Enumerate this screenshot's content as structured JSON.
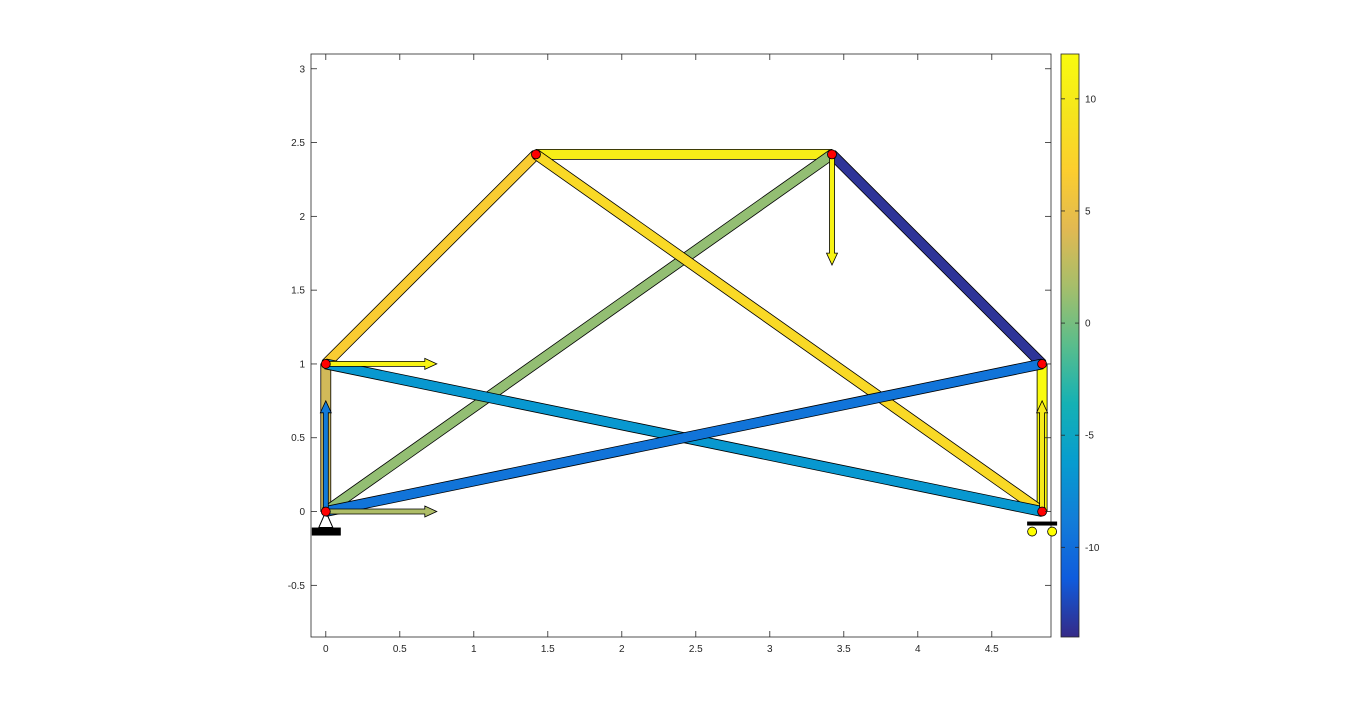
{
  "chart_data": {
    "type": "scatter",
    "title": "",
    "xlabel": "",
    "ylabel": "",
    "xlim": [
      -0.1,
      4.9
    ],
    "ylim": [
      -0.85,
      3.1
    ],
    "grid": false,
    "x_ticks": [
      {
        "value": 0,
        "label": "0"
      },
      {
        "value": 0.5,
        "label": "0.5"
      },
      {
        "value": 1,
        "label": "1"
      },
      {
        "value": 1.5,
        "label": "1.5"
      },
      {
        "value": 2,
        "label": "2"
      },
      {
        "value": 2.5,
        "label": "2.5"
      },
      {
        "value": 3,
        "label": "3"
      },
      {
        "value": 3.5,
        "label": "3.5"
      },
      {
        "value": 4,
        "label": "4"
      },
      {
        "value": 4.5,
        "label": "4.5"
      }
    ],
    "y_ticks": [
      {
        "value": -0.5,
        "label": "-0.5"
      },
      {
        "value": 0,
        "label": "0"
      },
      {
        "value": 0.5,
        "label": "0.5"
      },
      {
        "value": 1,
        "label": "1"
      },
      {
        "value": 1.5,
        "label": "1.5"
      },
      {
        "value": 2,
        "label": "2"
      },
      {
        "value": 2.5,
        "label": "2.5"
      },
      {
        "value": 3,
        "label": "3"
      }
    ],
    "nodes": [
      {
        "id": 1,
        "x": 0,
        "y": 0
      },
      {
        "id": 2,
        "x": 0,
        "y": 1
      },
      {
        "id": 3,
        "x": 1.42,
        "y": 2.42
      },
      {
        "id": 4,
        "x": 3.42,
        "y": 2.42
      },
      {
        "id": 5,
        "x": 4.84,
        "y": 1
      },
      {
        "id": 6,
        "x": 4.84,
        "y": 0
      }
    ],
    "members": [
      {
        "from": 1,
        "to": 2,
        "force": 3.5
      },
      {
        "from": 2,
        "to": 3,
        "force": 6.5
      },
      {
        "from": 3,
        "to": 4,
        "force": 10.5
      },
      {
        "from": 4,
        "to": 5,
        "force": -13.5
      },
      {
        "from": 5,
        "to": 6,
        "force": 12
      },
      {
        "from": 1,
        "to": 4,
        "force": 1
      },
      {
        "from": 3,
        "to": 6,
        "force": 8
      },
      {
        "from": 2,
        "to": 6,
        "force": -6.5
      },
      {
        "from": 1,
        "to": 5,
        "force": -9.5
      }
    ],
    "loads": [
      {
        "node": 2,
        "dx": 0.75,
        "dy": 0,
        "value": 11
      },
      {
        "node": 1,
        "dx": 0.75,
        "dy": 0,
        "value": 2
      },
      {
        "node": 1,
        "dx": 0,
        "dy": 0.75,
        "value": -9
      },
      {
        "node": 4,
        "dx": 0,
        "dy": -0.75,
        "value": 11
      },
      {
        "node": 6,
        "dx": 0,
        "dy": 0.75,
        "value": 10
      }
    ],
    "supports": [
      {
        "node": 1,
        "type": "pinned"
      },
      {
        "node": 6,
        "type": "roller"
      }
    ],
    "colorbar": {
      "colormap": "parula",
      "min": -14,
      "max": 12,
      "ticks": [
        {
          "value": -10,
          "label": "-10"
        },
        {
          "value": -5,
          "label": "-5"
        },
        {
          "value": 0,
          "label": "0"
        },
        {
          "value": 5,
          "label": "5"
        },
        {
          "value": 10,
          "label": "10"
        }
      ]
    },
    "colors": {
      "node": "#ff0000",
      "roller_wheel": "#ffff00",
      "support": "#000000",
      "axes": "#262626"
    }
  }
}
